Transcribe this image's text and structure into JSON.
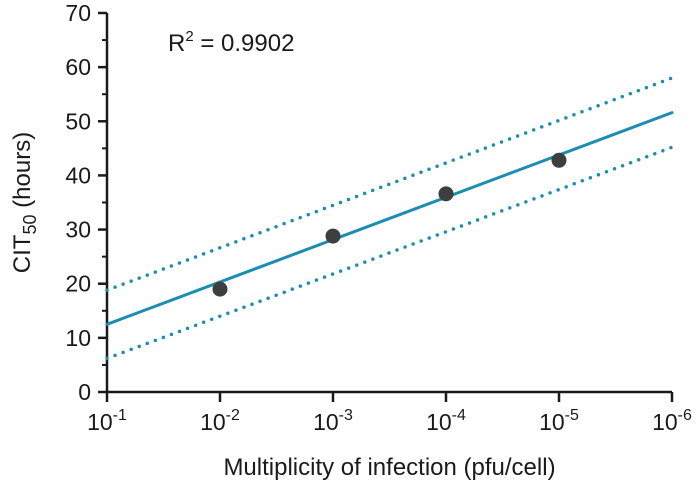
{
  "chart_data": {
    "type": "scatter",
    "title": "",
    "xlabel": "Multiplicity of infection (pfu/cell)",
    "ylabel_main": "CIT",
    "ylabel_sub": "50",
    "ylabel_suffix": " (hours)",
    "ylim": [
      0,
      70
    ],
    "yticks": [
      0,
      10,
      20,
      30,
      40,
      50,
      60,
      70
    ],
    "ytick_labels": [
      "0",
      "10",
      "20",
      "30",
      "40",
      "50",
      "60",
      "70"
    ],
    "xticks": [
      {
        "base": "10",
        "exp": "-1"
      },
      {
        "base": "10",
        "exp": "-2"
      },
      {
        "base": "10",
        "exp": "-3"
      },
      {
        "base": "10",
        "exp": "-4"
      },
      {
        "base": "10",
        "exp": "-5"
      },
      {
        "base": "10",
        "exp": "-6"
      }
    ],
    "x_log_exponent_range": [
      -1,
      -6
    ],
    "points": [
      {
        "x_exp": -2,
        "y": 19.0
      },
      {
        "x_exp": -3,
        "y": 28.8
      },
      {
        "x_exp": -4,
        "y": 36.6
      },
      {
        "x_exp": -5,
        "y": 42.8
      }
    ],
    "fit_line": {
      "name": "Linear fit",
      "start": [
        -1,
        12.5
      ],
      "end": [
        -6,
        51.6
      ]
    },
    "ci_upper": {
      "name": "Upper 95% CI",
      "start": [
        -1,
        18.8
      ],
      "end": [
        -6,
        58.0
      ]
    },
    "ci_lower": {
      "name": "Lower 95% CI",
      "start": [
        -1,
        6.2
      ],
      "end": [
        -6,
        45.2
      ]
    },
    "annotation": {
      "prefix": "R",
      "sup": "2",
      "suffix": " = 0.9902"
    },
    "colors": {
      "line": "#1b8db0",
      "points": "#3c3f3f",
      "axis": "#1a1a1a"
    }
  }
}
